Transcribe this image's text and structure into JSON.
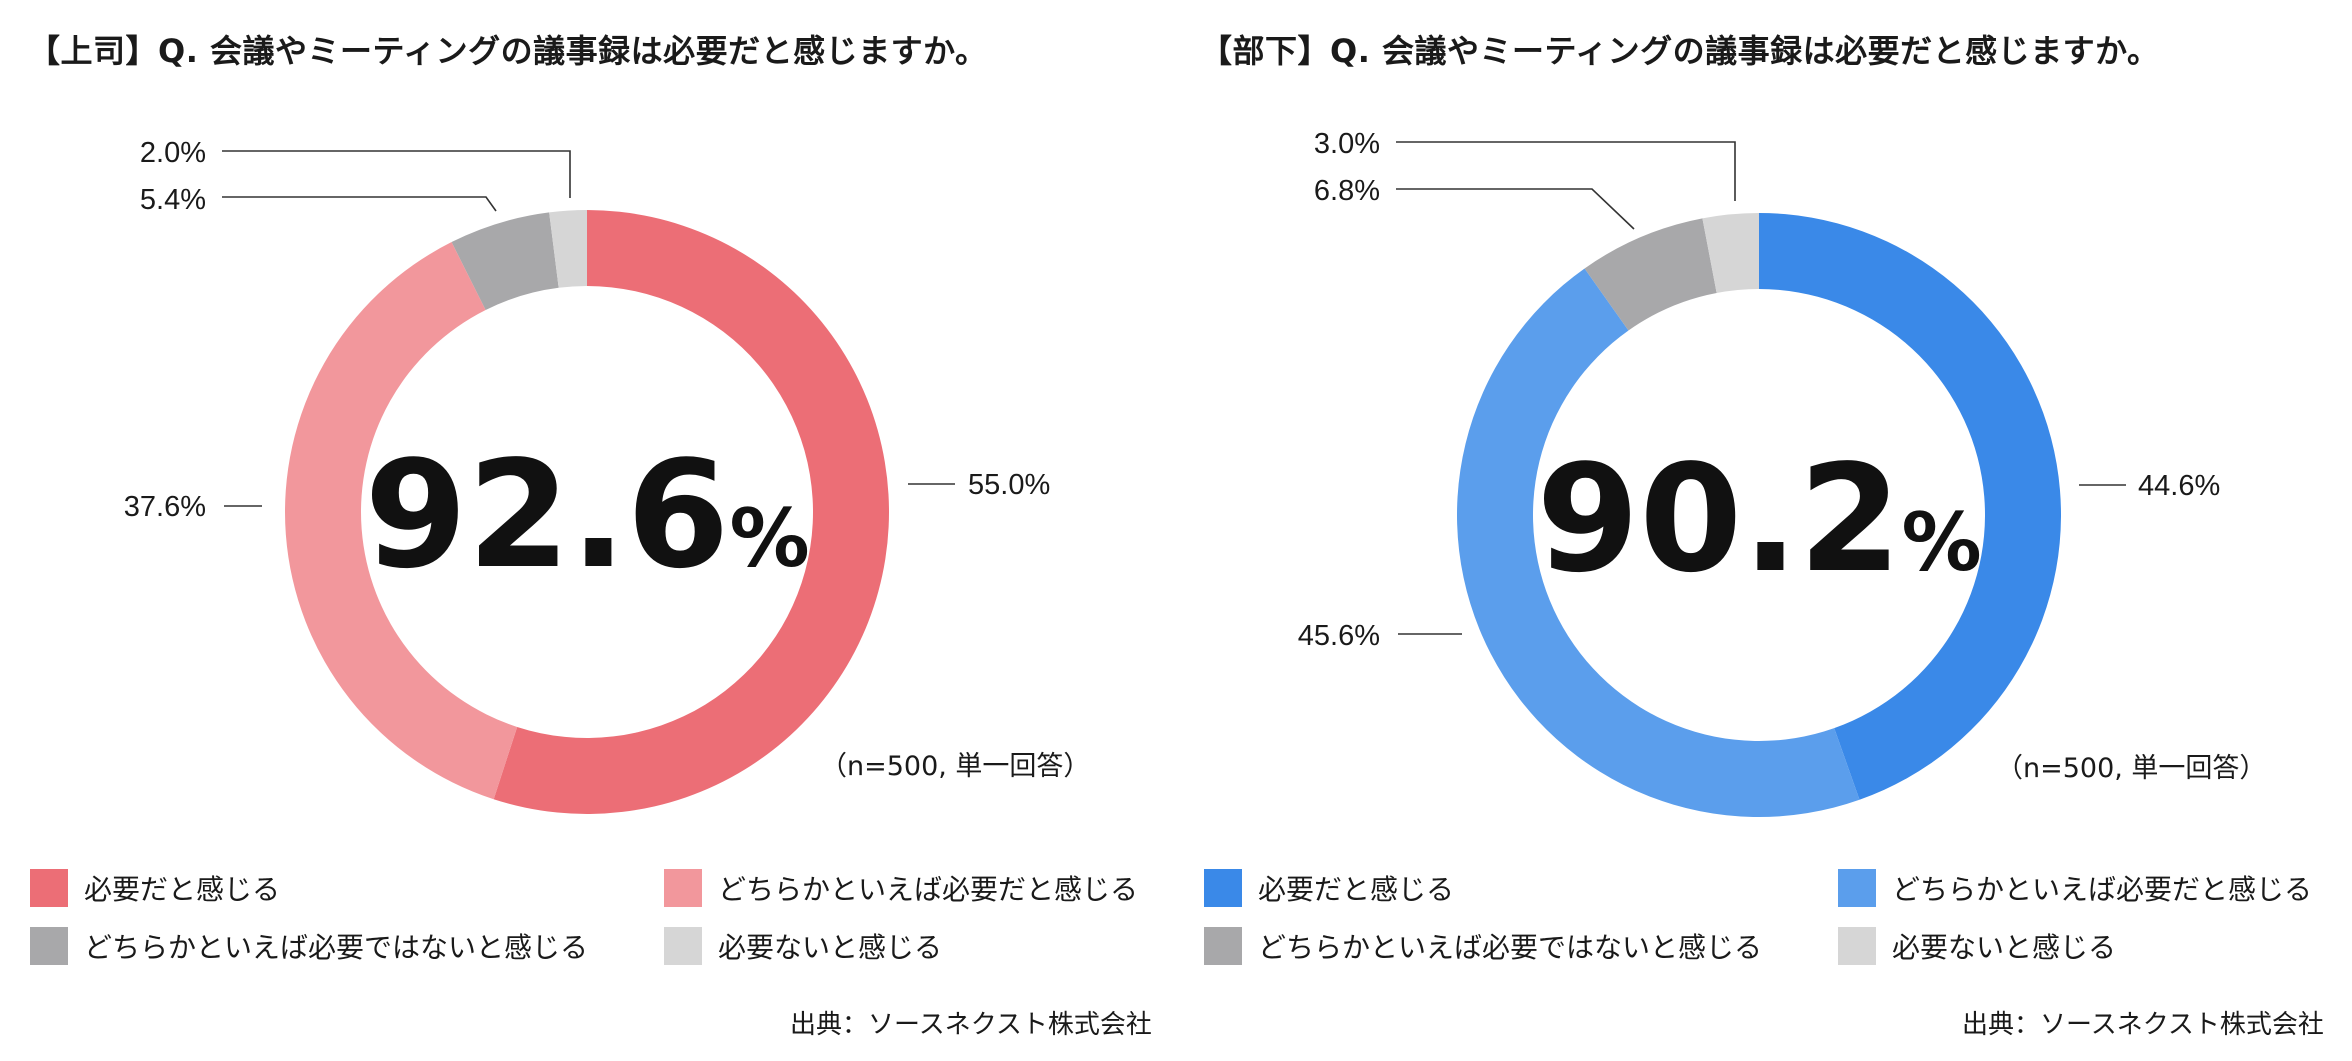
{
  "chart_data": [
    {
      "type": "donut",
      "title": "【上司】Q. 会議やミーティングの議事録は必要だと感じますか。",
      "center_value": "92.6",
      "center_unit": "%",
      "note": "（n=500, 単一回答）",
      "categories": [
        "必要だと感じる",
        "どちらかといえば必要だと感じる",
        "どちらかといえば必要ではないと感じる",
        "必要ないと感じる"
      ],
      "values": [
        55.0,
        37.6,
        5.4,
        2.0
      ],
      "value_labels": [
        "55.0%",
        "37.6%",
        "5.4%",
        "2.0%"
      ],
      "colors": [
        "#ec6e76",
        "#f2979c",
        "#a8a8aa",
        "#d6d6d6"
      ],
      "source": "出典：ソースネクスト株式会社"
    },
    {
      "type": "donut",
      "title": "【部下】Q. 会議やミーティングの議事録は必要だと感じますか。",
      "center_value": "90.2",
      "center_unit": "%",
      "note": "（n=500, 単一回答）",
      "categories": [
        "必要だと感じる",
        "どちらかといえば必要だと感じる",
        "どちらかといえば必要ではないと感じる",
        "必要ないと感じる"
      ],
      "values": [
        44.6,
        45.6,
        6.8,
        3.0
      ],
      "value_labels": [
        "44.6%",
        "45.6%",
        "6.8%",
        "3.0%"
      ],
      "colors": [
        "#3a89e8",
        "#5b9eec",
        "#a8a8aa",
        "#d6d6d6"
      ],
      "source": "出典：ソースネクスト株式会社"
    }
  ]
}
